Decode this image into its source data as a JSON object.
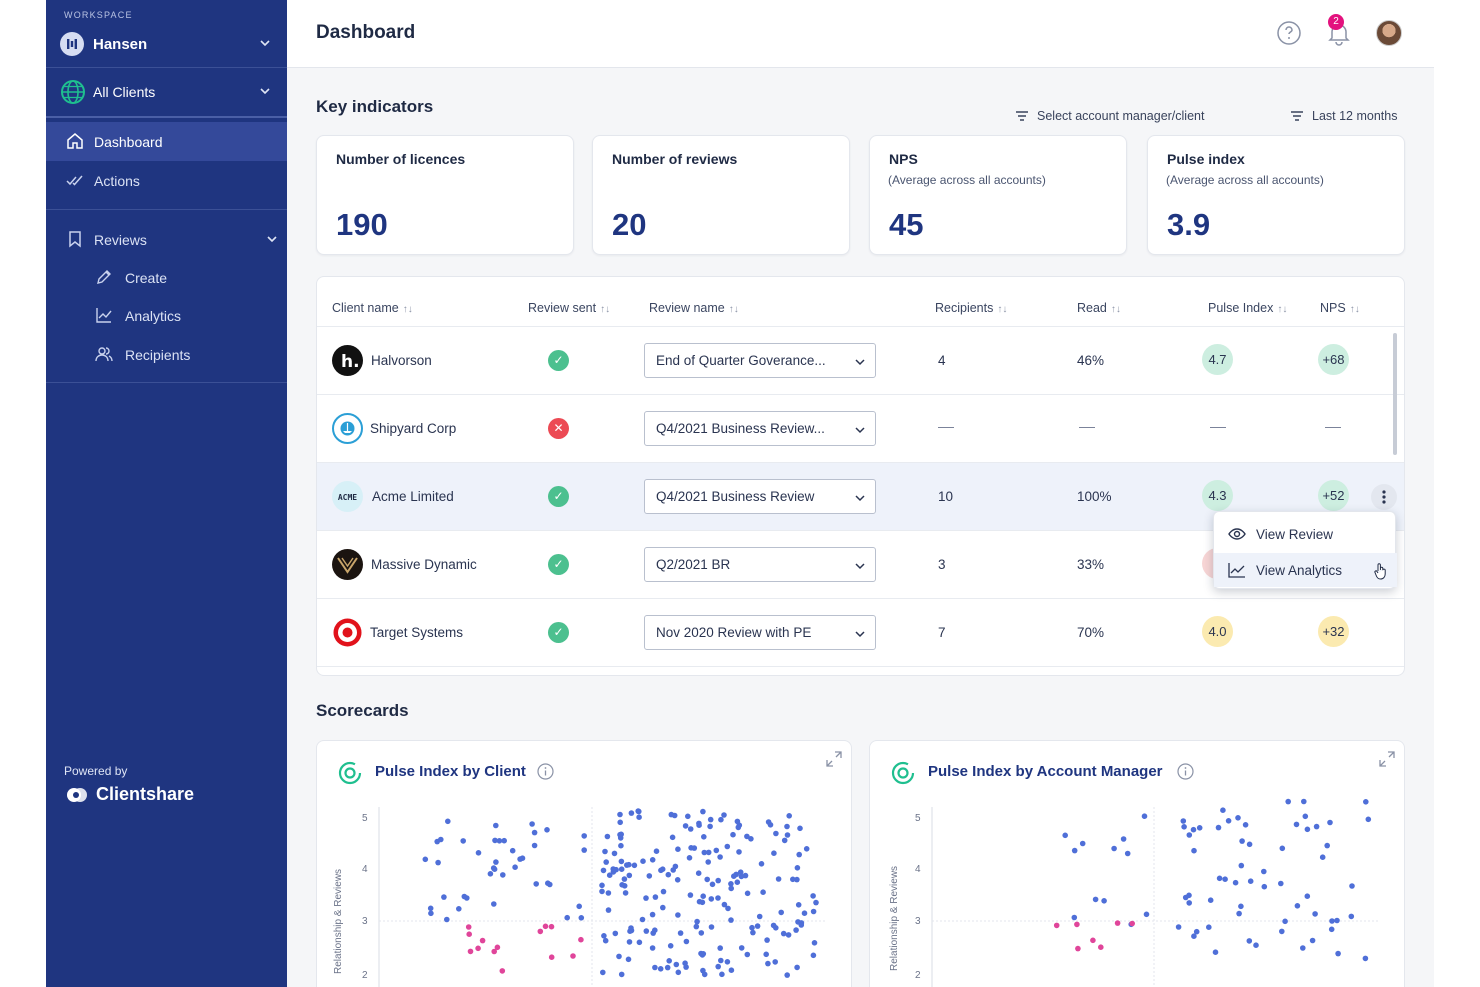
{
  "sidebar": {
    "workspace_label": "WORKSPACE",
    "workspace_name": "Hansen",
    "client_scope": "All Clients",
    "items": [
      {
        "label": "Dashboard",
        "icon": "home-icon"
      },
      {
        "label": "Actions",
        "icon": "double-check-icon"
      },
      {
        "label": "Reviews",
        "icon": "bookmark-icon"
      },
      {
        "label": "Create",
        "icon": "pencil-icon"
      },
      {
        "label": "Analytics",
        "icon": "line-chart-icon"
      },
      {
        "label": "Recipients",
        "icon": "users-icon"
      }
    ],
    "powered_by": "Powered by",
    "brand": "Clientshare"
  },
  "header": {
    "title": "Dashboard",
    "notification_count": "2"
  },
  "key_indicators": {
    "title": "Key indicators",
    "filter_manager": "Select account manager/client",
    "filter_period": "Last 12 months",
    "cards": [
      {
        "title": "Number of licences",
        "subtitle": "",
        "value": "190"
      },
      {
        "title": "Number of reviews",
        "subtitle": "",
        "value": "20"
      },
      {
        "title": "NPS",
        "subtitle": "(Average across all accounts)",
        "value": "45"
      },
      {
        "title": "Pulse index",
        "subtitle": "(Average across all accounts)",
        "value": "3.9"
      }
    ]
  },
  "table": {
    "columns": [
      "Client name",
      "Review sent",
      "Review name",
      "Recipients",
      "Read",
      "Pulse Index",
      "NPS"
    ],
    "sort_glyph": "↑↓",
    "rows": [
      {
        "client": "Halvorson",
        "sent": true,
        "review": "End of Quarter Goverance...",
        "recipients": "4",
        "read": "46%",
        "pulse": "4.7",
        "nps": "+68",
        "pulse_color": "green",
        "nps_color": "green"
      },
      {
        "client": "Shipyard Corp",
        "sent": false,
        "review": "Q4/2021 Business Review...",
        "recipients": "",
        "read": "",
        "pulse": "",
        "nps": ""
      },
      {
        "client": "Acme Limited",
        "sent": true,
        "review": "Q4/2021 Business Review",
        "recipients": "10",
        "read": "100%",
        "pulse": "4.3",
        "nps": "+52",
        "pulse_color": "green",
        "nps_color": "green"
      },
      {
        "client": "Massive Dynamic",
        "sent": true,
        "review": "Q2/2021 BR",
        "recipients": "3",
        "read": "33%",
        "pulse": "3",
        "nps": "",
        "pulse_color": "red"
      },
      {
        "client": "Target Systems",
        "sent": true,
        "review": "Nov 2020 Review with PE",
        "recipients": "7",
        "read": "70%",
        "pulse": "4.0",
        "nps": "+32",
        "pulse_color": "yellow",
        "nps_color": "yellow"
      }
    ],
    "acme_logo_text": "ACME"
  },
  "row_menu": {
    "items": [
      "View Review",
      "View Analytics"
    ]
  },
  "scorecards": {
    "title": "Scorecards",
    "cards": [
      {
        "title": "Pulse Index by Client",
        "ylabel": "Relationship & Reviews",
        "yticks": [
          "5",
          "4",
          "3",
          "2"
        ]
      },
      {
        "title": "Pulse Index by Account Manager",
        "ylabel": "Relationship & Reviews",
        "yticks": [
          "5",
          "4",
          "3",
          "2"
        ]
      }
    ]
  },
  "colors": {
    "sidebar": "#1f3580",
    "accent_teal": "#1fbf8f",
    "point_blue": "#4f6fd8",
    "point_pink": "#e0459a"
  }
}
